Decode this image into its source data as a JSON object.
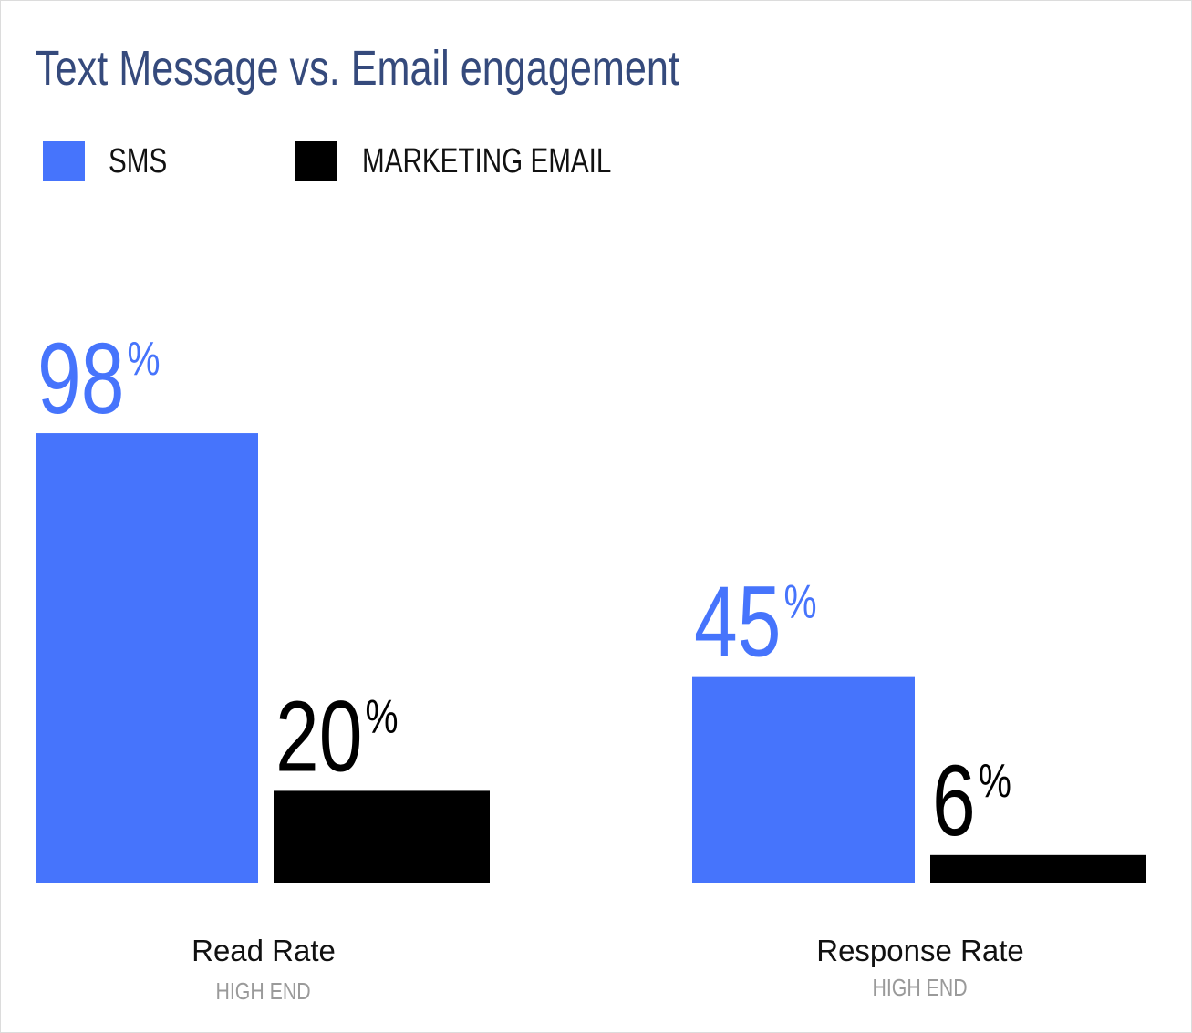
{
  "chart_data": {
    "type": "bar",
    "title": "Text Message vs. Email engagement",
    "categories": [
      "Read Rate",
      "Response Rate"
    ],
    "category_sublabels": [
      "HIGH END",
      "HIGH END"
    ],
    "series": [
      {
        "name": "SMS",
        "values": [
          98,
          45
        ],
        "color": "#4674fc"
      },
      {
        "name": "MARKETING EMAIL",
        "values": [
          20,
          6
        ],
        "color": "#000000"
      }
    ],
    "value_suffix": "%",
    "ylim": [
      0,
      100
    ],
    "grid": false,
    "legend_position": "top-left",
    "data_labels": true
  }
}
